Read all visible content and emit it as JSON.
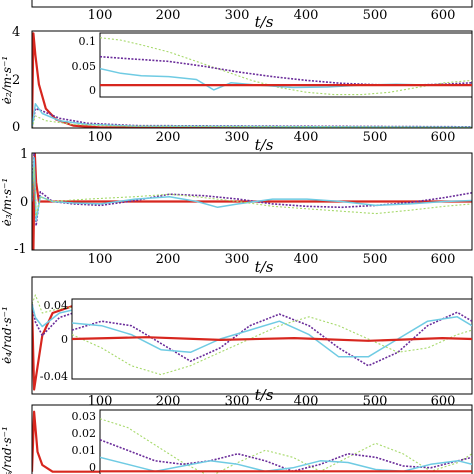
{
  "colors": {
    "red": "#d7261e",
    "purple": "#6a2c9a",
    "cyan": "#6fcbe3",
    "green": "#a6d96a",
    "blue": "#2f5fd0",
    "axis": "#000000"
  },
  "chart_data": [
    {
      "type": "line",
      "xlabel": "t/s",
      "xticks": [
        "100",
        "200",
        "300",
        "400",
        "500",
        "600"
      ],
      "xlim": [
        0,
        640
      ],
      "grid": false,
      "series": [
        {
          "color": "purple",
          "x": [
            0,
            640
          ],
          "y": [
            0,
            0
          ]
        }
      ]
    },
    {
      "type": "line",
      "ylabel": "ė₂/m·s⁻¹",
      "xlabel": "t/s",
      "xlim": [
        0,
        640
      ],
      "ylim": [
        0,
        4
      ],
      "yticks": [
        "0",
        "2",
        "4"
      ],
      "xticks": [
        "100",
        "200",
        "300",
        "400",
        "500",
        "600"
      ],
      "grid": false,
      "series": [
        {
          "color": "red",
          "x": [
            0,
            2,
            5,
            10,
            20,
            35,
            60,
            100,
            640
          ],
          "y": [
            0,
            3.9,
            3.0,
            1.8,
            0.8,
            0.35,
            0.1,
            0.02,
            0.0
          ]
        },
        {
          "color": "purple",
          "x": [
            0,
            5,
            15,
            40,
            80,
            150,
            640
          ],
          "y": [
            0,
            0.8,
            0.7,
            0.4,
            0.2,
            0.1,
            0.05
          ]
        },
        {
          "color": "cyan",
          "x": [
            0,
            5,
            15,
            40,
            80,
            150,
            640
          ],
          "y": [
            0,
            1.0,
            0.6,
            0.3,
            0.15,
            0.08,
            0.03
          ]
        },
        {
          "color": "green",
          "x": [
            0,
            5,
            20,
            60,
            120,
            640
          ],
          "y": [
            0,
            0.5,
            0.3,
            0.15,
            0.08,
            0.02
          ]
        }
      ],
      "inset": {
        "xlim": [
          100,
          640
        ],
        "ylim": [
          -0.025,
          0.11
        ],
        "yticks": [
          "0",
          "0.05",
          "0.1"
        ],
        "series": [
          {
            "color": "green",
            "x": [
              100,
              130,
              160,
              200,
              240,
              280,
              320,
              360,
              400,
              440,
              480,
              520,
              560,
              600,
              640
            ],
            "y": [
              0.1,
              0.095,
              0.085,
              0.07,
              0.05,
              0.03,
              0.01,
              -0.005,
              -0.015,
              -0.02,
              -0.02,
              -0.015,
              -0.005,
              0.005,
              0.01
            ]
          },
          {
            "color": "purple",
            "x": [
              100,
              150,
              200,
              250,
              300,
              350,
              400,
              450,
              500,
              550,
              600,
              640
            ],
            "y": [
              0.06,
              0.055,
              0.05,
              0.04,
              0.028,
              0.018,
              0.01,
              0.004,
              0.001,
              0.0,
              0.002,
              0.005
            ]
          },
          {
            "color": "cyan",
            "x": [
              100,
              130,
              160,
              200,
              240,
              265,
              290,
              330,
              380,
              430,
              480,
              530,
              580,
              640
            ],
            "y": [
              0.035,
              0.025,
              0.02,
              0.018,
              0.012,
              -0.01,
              0.005,
              0.0,
              -0.005,
              -0.004,
              0.0,
              0.002,
              0.0,
              0.0
            ]
          },
          {
            "color": "red",
            "x": [
              100,
              640
            ],
            "y": [
              0.0,
              0.0
            ]
          }
        ]
      }
    },
    {
      "type": "line",
      "ylabel": "ė₃/m·s⁻¹",
      "xlabel": "t/s",
      "xlim": [
        0,
        640
      ],
      "ylim": [
        -1,
        1
      ],
      "yticks": [
        "-1",
        "0",
        "1"
      ],
      "xticks": [
        "100",
        "200",
        "300",
        "400",
        "500",
        "600"
      ],
      "grid": false,
      "series": [
        {
          "color": "red",
          "x": [
            0,
            2,
            4,
            6,
            10,
            640
          ],
          "y": [
            0,
            -1.0,
            1.0,
            0.4,
            0.0,
            0.0
          ]
        },
        {
          "color": "purple",
          "x": [
            0,
            3,
            6,
            12,
            30,
            60,
            100,
            150,
            200,
            250,
            300,
            350,
            400,
            450,
            500,
            550,
            600,
            640
          ],
          "y": [
            0,
            1.0,
            -0.5,
            0.2,
            0.0,
            -0.05,
            -0.08,
            0.02,
            0.15,
            0.12,
            0.05,
            -0.05,
            -0.1,
            -0.12,
            -0.08,
            -0.02,
            0.08,
            0.18
          ]
        },
        {
          "color": "cyan",
          "x": [
            0,
            3,
            6,
            12,
            30,
            60,
            100,
            150,
            200,
            240,
            270,
            300,
            350,
            400,
            450,
            500,
            550,
            600,
            640
          ],
          "y": [
            0,
            0.9,
            -0.4,
            0.1,
            0.0,
            -0.03,
            -0.05,
            0.05,
            0.1,
            0.0,
            -0.12,
            -0.05,
            0.05,
            0.05,
            0.0,
            -0.08,
            -0.05,
            0.0,
            0.02
          ]
        },
        {
          "color": "green",
          "x": [
            0,
            3,
            6,
            12,
            30,
            80,
            150,
            200,
            250,
            300,
            350,
            400,
            450,
            500,
            550,
            600,
            640
          ],
          "y": [
            0,
            0.7,
            -0.3,
            0.1,
            0.0,
            0.05,
            0.1,
            0.15,
            0.08,
            0.0,
            -0.1,
            -0.15,
            -0.2,
            -0.25,
            -0.18,
            -0.1,
            -0.05
          ]
        }
      ]
    },
    {
      "type": "line",
      "ylabel": "ė₄/rad·s⁻¹",
      "xlabel": "t/s",
      "xlim": [
        0,
        640
      ],
      "ylim": [
        -1,
        0.3
      ],
      "xticks": [
        "100",
        "200",
        "300",
        "400",
        "500",
        "600"
      ],
      "grid": false,
      "series": [
        {
          "color": "red",
          "x": [
            0,
            3,
            8,
            15,
            30,
            60,
            100,
            640
          ],
          "y": [
            0,
            -0.95,
            -0.7,
            -0.35,
            -0.1,
            -0.02,
            0.0,
            0.0
          ]
        },
        {
          "color": "purple",
          "x": [
            0,
            5,
            15,
            40,
            80,
            120,
            640
          ],
          "y": [
            0,
            -0.2,
            -0.35,
            -0.15,
            -0.05,
            -0.01,
            0.0
          ]
        },
        {
          "color": "cyan",
          "x": [
            0,
            5,
            15,
            40,
            80,
            120,
            640
          ],
          "y": [
            0,
            -0.15,
            -0.25,
            -0.1,
            -0.03,
            0.0,
            0.0
          ]
        },
        {
          "color": "green",
          "x": [
            0,
            5,
            15,
            40,
            80,
            120,
            640
          ],
          "y": [
            0,
            0.1,
            -0.1,
            -0.05,
            -0.02,
            0.0,
            0.0
          ]
        }
      ],
      "inset": {
        "xlim": [
          100,
          640
        ],
        "ylim": [
          -0.045,
          0.045
        ],
        "yticks": [
          "-0.04",
          "0",
          "0.04"
        ],
        "series": [
          {
            "color": "purple",
            "x": [
              100,
              140,
              180,
              220,
              260,
              300,
              340,
              380,
              420,
              460,
              500,
              540,
              580,
              620,
              640
            ],
            "y": [
              0.01,
              0.02,
              0.015,
              -0.005,
              -0.025,
              -0.01,
              0.015,
              0.028,
              0.015,
              -0.01,
              -0.03,
              -0.015,
              0.015,
              0.03,
              0.02
            ]
          },
          {
            "color": "cyan",
            "x": [
              100,
              140,
              180,
              220,
              260,
              300,
              340,
              380,
              420,
              460,
              500,
              540,
              580,
              620,
              640
            ],
            "y": [
              0.018,
              0.015,
              0.005,
              -0.012,
              -0.015,
              0.0,
              0.01,
              0.02,
              0.005,
              -0.02,
              -0.02,
              0.0,
              0.02,
              0.025,
              0.015
            ]
          },
          {
            "color": "green",
            "x": [
              100,
              140,
              180,
              220,
              260,
              300,
              340,
              380,
              420,
              460,
              500,
              540,
              580,
              620,
              640
            ],
            "y": [
              0.005,
              -0.01,
              -0.03,
              -0.04,
              -0.03,
              -0.015,
              0.0,
              0.015,
              0.025,
              0.015,
              0.0,
              -0.015,
              -0.01,
              0.005,
              0.01
            ]
          },
          {
            "color": "red",
            "x": [
              100,
              200,
              300,
              400,
              500,
              600,
              640
            ],
            "y": [
              0.0,
              0.002,
              -0.001,
              0.001,
              -0.002,
              0.001,
              0.0
            ]
          }
        ]
      }
    },
    {
      "type": "line",
      "ylabel": "ė₅/rad·s⁻¹",
      "xlabel": "t/s",
      "xlim": [
        0,
        640
      ],
      "xticks": [
        "100",
        "200",
        "300",
        "400",
        "500",
        "600"
      ],
      "grid": false,
      "series": [
        {
          "color": "red",
          "x": [
            0,
            3,
            8,
            15,
            30,
            640
          ],
          "y": [
            0,
            0.9,
            0.3,
            0.1,
            0.0,
            0.0
          ]
        }
      ],
      "inset": {
        "xlim": [
          100,
          640
        ],
        "ylim": [
          -0.005,
          0.035
        ],
        "yticks": [
          "0",
          "0.01",
          "0.02",
          "0.03"
        ],
        "series": [
          {
            "color": "green",
            "x": [
              100,
              140,
              180,
              220,
              260,
              300,
              340,
              380,
              420,
              460,
              500,
              540,
              580,
              620,
              640
            ],
            "y": [
              0.03,
              0.025,
              0.015,
              0.005,
              -0.003,
              0.005,
              0.012,
              0.008,
              0.0,
              0.008,
              0.016,
              0.01,
              0.0,
              0.005,
              0.01
            ]
          },
          {
            "color": "purple",
            "x": [
              100,
              140,
              180,
              220,
              260,
              300,
              340,
              380,
              420,
              460,
              500,
              540,
              580,
              620,
              640
            ],
            "y": [
              0.018,
              0.012,
              0.006,
              0.004,
              0.006,
              0.01,
              0.006,
              0.0,
              0.004,
              0.01,
              0.008,
              0.003,
              0.002,
              0.006,
              0.008
            ]
          },
          {
            "color": "cyan",
            "x": [
              100,
              140,
              180,
              220,
              260,
              300,
              340,
              380,
              420,
              460,
              500,
              540,
              580,
              620,
              640
            ],
            "y": [
              0.008,
              0.004,
              0.0,
              0.003,
              0.006,
              0.004,
              0.0,
              0.002,
              0.006,
              0.005,
              0.001,
              0.0,
              0.004,
              0.006,
              0.004
            ]
          },
          {
            "color": "red",
            "x": [
              100,
              640
            ],
            "y": [
              0.0,
              0.0
            ]
          }
        ]
      }
    }
  ]
}
